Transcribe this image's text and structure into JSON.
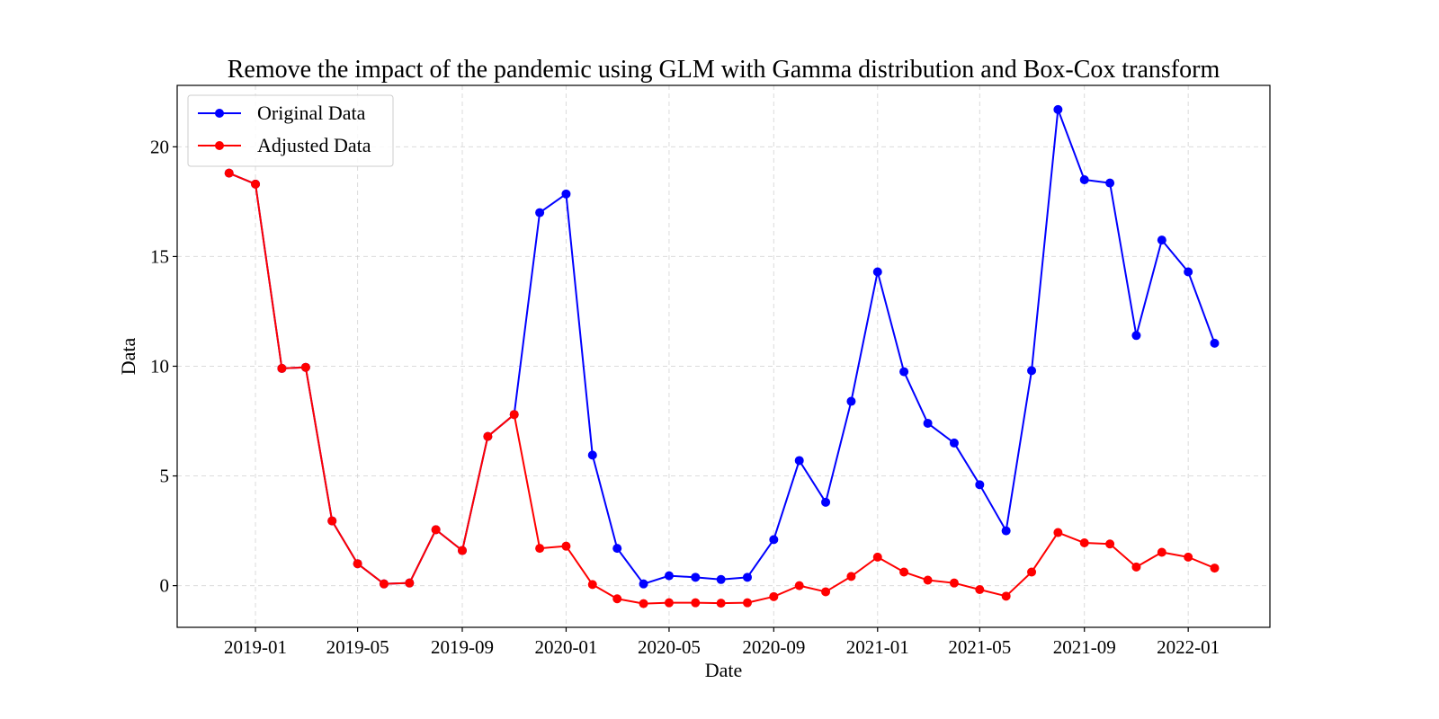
{
  "chart_data": {
    "type": "line",
    "title": "Remove the impact of the pandemic using GLM with Gamma distribution and Box-Cox transform",
    "xlabel": "Date",
    "ylabel": "Data",
    "ylim": [
      -1.9,
      22.8
    ],
    "xlim": [
      "2018-10-01",
      "2022-04-07"
    ],
    "grid": true,
    "legend_position": "top-left",
    "x_ticks": [
      "2019-01",
      "2019-05",
      "2019-09",
      "2020-01",
      "2020-05",
      "2020-09",
      "2021-01",
      "2021-05",
      "2021-09",
      "2022-01"
    ],
    "y_ticks": [
      0,
      5,
      10,
      15,
      20
    ],
    "x": [
      "2018-12",
      "2019-01",
      "2019-02",
      "2019-03",
      "2019-04",
      "2019-05",
      "2019-06",
      "2019-07",
      "2019-08",
      "2019-09",
      "2019-10",
      "2019-11",
      "2019-12",
      "2020-01",
      "2020-02",
      "2020-03",
      "2020-04",
      "2020-05",
      "2020-06",
      "2020-07",
      "2020-08",
      "2020-09",
      "2020-10",
      "2020-11",
      "2020-12",
      "2021-01",
      "2021-02",
      "2021-03",
      "2021-04",
      "2021-05",
      "2021-06",
      "2021-07",
      "2021-08",
      "2021-09",
      "2021-10",
      "2021-11",
      "2021-12",
      "2022-01",
      "2022-02"
    ],
    "series": [
      {
        "name": "Original Data",
        "color": "#0000ff",
        "values": [
          18.8,
          18.3,
          9.9,
          9.95,
          2.95,
          1.0,
          0.08,
          0.12,
          2.55,
          1.6,
          6.8,
          7.8,
          17.0,
          17.85,
          5.95,
          1.7,
          0.08,
          0.45,
          0.38,
          0.28,
          0.38,
          2.1,
          5.7,
          3.8,
          8.4,
          14.3,
          9.75,
          7.4,
          6.5,
          4.6,
          2.5,
          9.8,
          21.7,
          18.5,
          18.35,
          11.4,
          15.75,
          14.3,
          11.05
        ]
      },
      {
        "name": "Adjusted Data",
        "color": "#ff0000",
        "values": [
          18.8,
          18.3,
          9.9,
          9.95,
          2.95,
          1.0,
          0.08,
          0.12,
          2.55,
          1.6,
          6.8,
          7.8,
          1.7,
          1.8,
          0.05,
          -0.6,
          -0.82,
          -0.78,
          -0.78,
          -0.8,
          -0.78,
          -0.5,
          0.0,
          -0.28,
          0.42,
          1.3,
          0.62,
          0.25,
          0.12,
          -0.18,
          -0.48,
          0.62,
          2.42,
          1.95,
          1.9,
          0.85,
          1.52,
          1.3,
          0.8
        ]
      }
    ]
  }
}
